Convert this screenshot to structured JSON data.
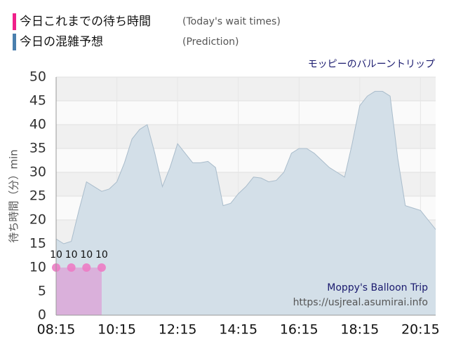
{
  "chart_data": {
    "type": "area",
    "title": "モッピーのバルーントリップ",
    "y_label": "待ち時間（分）min",
    "watermark": [
      "Moppy's Balloon Trip",
      "https://usjreal.asumirai.info"
    ],
    "xlim": [
      "08:15",
      "20:45"
    ],
    "xticks": [
      "08:15",
      "10:15",
      "12:15",
      "14:15",
      "16:15",
      "18:15",
      "20:15"
    ],
    "ylim": [
      0,
      50
    ],
    "yticks": [
      0,
      5,
      10,
      15,
      20,
      25,
      30,
      35,
      40,
      45,
      50
    ],
    "grid": true,
    "series": [
      {
        "name": "今日これまでの待ち時間",
        "name_en": "(Today's wait times)",
        "color": "#f0208a",
        "fill": "#dba8d8",
        "marker": "#ec7cc4",
        "x": [
          "08:15",
          "08:45",
          "09:15",
          "09:45"
        ],
        "values": [
          10,
          10,
          10,
          10
        ]
      },
      {
        "name": "今日の混雑予想",
        "name_en": "(Prediction)",
        "color": "#4a7fae",
        "fill": "#d3dfe8",
        "line": "#a9bccb",
        "x": [
          "08:15",
          "08:30",
          "08:45",
          "09:00",
          "09:15",
          "09:30",
          "09:45",
          "10:00",
          "10:15",
          "10:30",
          "10:45",
          "11:00",
          "11:15",
          "11:30",
          "11:45",
          "12:00",
          "12:15",
          "12:30",
          "12:45",
          "13:00",
          "13:15",
          "13:30",
          "13:45",
          "14:00",
          "14:15",
          "14:30",
          "14:45",
          "15:00",
          "15:15",
          "15:30",
          "15:45",
          "16:00",
          "16:15",
          "16:30",
          "16:45",
          "17:00",
          "17:15",
          "17:30",
          "17:45",
          "18:00",
          "18:15",
          "18:30",
          "18:45",
          "19:00",
          "19:15",
          "19:30",
          "19:45",
          "20:00",
          "20:15",
          "20:30",
          "20:45"
        ],
        "values": [
          16,
          15,
          15.5,
          22,
          28,
          27,
          26,
          26.5,
          28,
          32,
          37,
          39,
          40,
          34,
          27,
          31,
          36,
          34,
          32,
          32,
          32.3,
          31,
          23,
          23.5,
          25.5,
          27,
          29,
          28.8,
          28,
          28.3,
          30,
          34,
          35,
          35,
          34,
          32.5,
          31,
          30,
          29,
          36,
          44,
          46,
          47,
          47,
          46,
          33,
          23,
          22.5,
          22,
          20,
          18
        ]
      }
    ]
  }
}
